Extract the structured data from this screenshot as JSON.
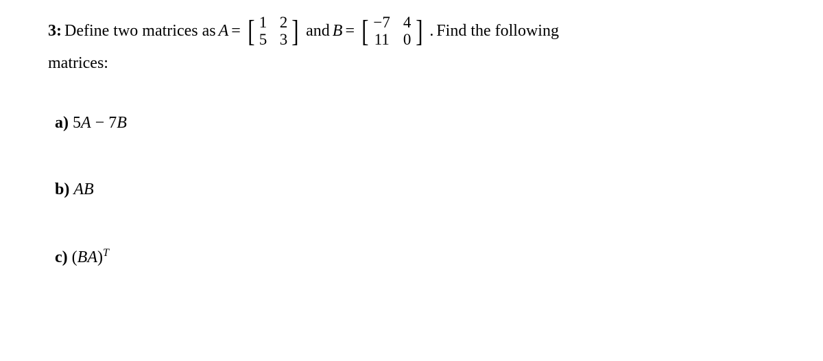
{
  "problem": {
    "number_label": "3:",
    "intro_text": "Define two matrices as",
    "var_a": "A",
    "equals1": "=",
    "matrix_a": {
      "r1c1": "1",
      "r1c2": "2",
      "r2c1": "5",
      "r2c2": "3"
    },
    "and_text": "and",
    "var_b": "B",
    "equals2": "=",
    "matrix_b": {
      "r1c1": "−7",
      "r1c2": "4",
      "r2c1": "11",
      "r2c2": "0"
    },
    "period": ".",
    "closing_text": "Find the following",
    "second_line": "matrices:"
  },
  "parts": {
    "a": {
      "label": "a)",
      "expression_pre": "5",
      "var1": "A",
      "minus": " − 7",
      "var2": "B"
    },
    "b": {
      "label": "b)",
      "var1": "A",
      "var2": "B"
    },
    "c": {
      "label": "c)",
      "open": "(",
      "var1": "B",
      "var2": "A",
      "close": ")",
      "sup": "T"
    }
  },
  "style": {
    "background_color": "#ffffff",
    "text_color": "#000000",
    "font_family": "Times New Roman",
    "base_fontsize": 24
  }
}
